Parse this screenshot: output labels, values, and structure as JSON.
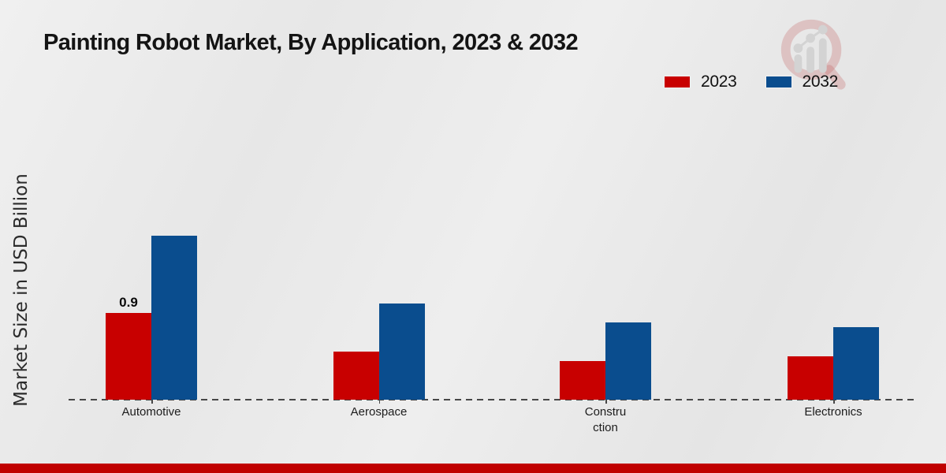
{
  "page": {
    "title": "Painting Robot Market, By Application, 2023 & 2032"
  },
  "legend": {
    "items": [
      {
        "label": "2023",
        "color": "#c80000"
      },
      {
        "label": "2032",
        "color": "#0a4d8e"
      }
    ]
  },
  "chart_data": {
    "type": "bar",
    "title": "Painting Robot Market, By Application, 2023 & 2032",
    "xlabel": "",
    "ylabel": "Market Size in USD Billion",
    "unit": "USD Billion",
    "categories": [
      "Automotive",
      "Aerospace",
      "Construction",
      "Electronics"
    ],
    "category_display_lines": [
      [
        "Automotive"
      ],
      [
        "Aerospace"
      ],
      [
        "Constru",
        "ction"
      ],
      [
        "Electronics"
      ]
    ],
    "series": [
      {
        "name": "2023",
        "color": "#c80000",
        "values": [
          0.9,
          0.5,
          0.4,
          0.45
        ]
      },
      {
        "name": "2032",
        "color": "#0a4d8e",
        "values": [
          1.7,
          1.0,
          0.8,
          0.75
        ]
      }
    ],
    "annotations": [
      {
        "category": "Automotive",
        "series": "2023",
        "text": "0.9"
      }
    ],
    "ylim": [
      0,
      2.0
    ],
    "grid": false,
    "axis_style": "dashed-baseline",
    "legend_position": "top-right"
  },
  "icons": {
    "watermark": "magnifier-bar-chart-logo"
  },
  "footer": {
    "band_color": "#c00000"
  }
}
